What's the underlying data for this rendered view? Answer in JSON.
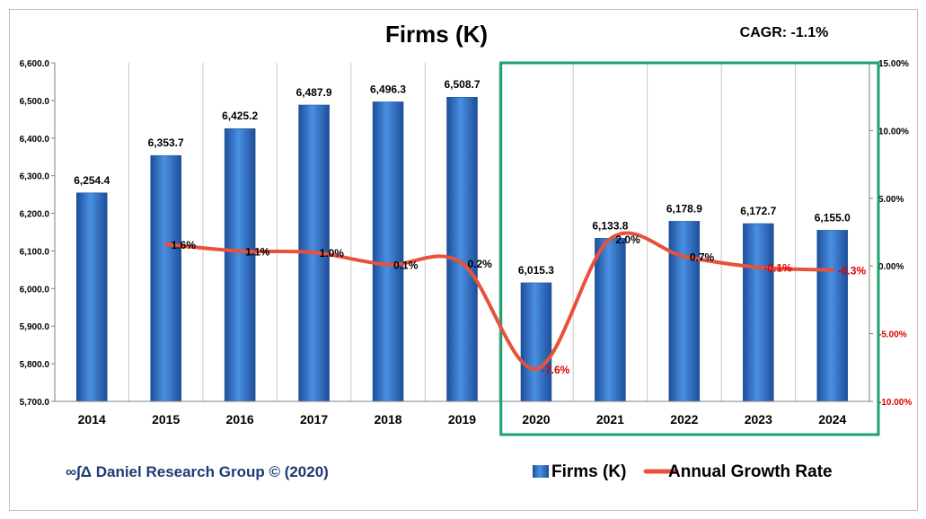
{
  "chart_data": {
    "type": "bar",
    "title": "Firms (K)",
    "annotation": "CAGR: -1.1%",
    "categories": [
      "2014",
      "2015",
      "2016",
      "2017",
      "2018",
      "2019",
      "2020",
      "2021",
      "2022",
      "2023",
      "2024"
    ],
    "series": [
      {
        "name": "Firms (K)",
        "type": "bar",
        "axis": "left",
        "color": "#3a7fd5",
        "values": [
          6254.4,
          6353.7,
          6425.2,
          6487.9,
          6496.3,
          6508.7,
          6015.3,
          6133.8,
          6178.9,
          6172.7,
          6155.0
        ],
        "labels": [
          "6,254.4",
          "6,353.7",
          "6,425.2",
          "6,487.9",
          "6,496.3",
          "6,508.7",
          "6,015.3",
          "6,133.8",
          "6,178.9",
          "6,172.7",
          "6,155.0"
        ]
      },
      {
        "name": "Annual Growth Rate",
        "type": "line",
        "axis": "right",
        "color": "#e8513a",
        "values": [
          null,
          1.6,
          1.1,
          1.0,
          0.1,
          0.2,
          -7.6,
          2.0,
          0.7,
          -0.1,
          -0.3
        ],
        "labels": [
          "",
          "1.6%",
          "1.1%",
          "1.0%",
          "0.1%",
          "0.2%",
          "-7.6%",
          "2.0%",
          "0.7%",
          "-0.1%",
          "-0.3%"
        ]
      }
    ],
    "y_left": {
      "ylim": [
        5700,
        6600
      ],
      "ticks": [
        5700,
        5800,
        5900,
        6000,
        6100,
        6200,
        6300,
        6400,
        6500,
        6600
      ],
      "tick_labels": [
        "5,700.0",
        "5,800.0",
        "5,900.0",
        "6,000.0",
        "6,100.0",
        "6,200.0",
        "6,300.0",
        "6,400.0",
        "6,500.0",
        "6,600.0"
      ]
    },
    "y_right": {
      "ylim": [
        -10,
        15
      ],
      "ticks": [
        -10,
        -5,
        0,
        5,
        10,
        15
      ],
      "tick_labels": [
        "-10.00%",
        "-5.00%",
        "0.00%",
        "5.00%",
        "10.00%",
        "15.00%"
      ],
      "negative_color": "#e00000"
    },
    "grid": "vertical",
    "highlight": {
      "from": "2020",
      "to": "2024",
      "color": "#1aa36a"
    },
    "legend_position": "bottom-right",
    "credit": "∞∫Δ Daniel Research Group © (2020)"
  }
}
